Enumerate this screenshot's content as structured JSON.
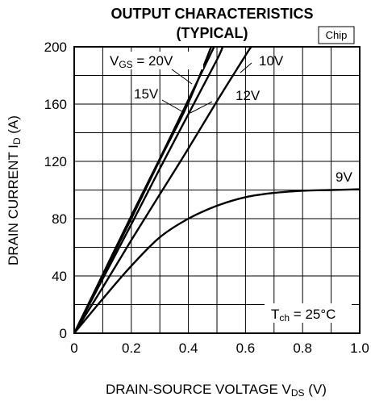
{
  "chart_data": {
    "type": "line",
    "title": "OUTPUT CHARACTERISTICS",
    "subtitle": "(TYPICAL)",
    "badge": "Chip",
    "xlabel": {
      "main": "DRAIN-SOURCE VOLTAGE  V",
      "sub": "DS",
      "unit": " (V)"
    },
    "ylabel": {
      "main": "DRAIN CURRENT  I",
      "sub": "D",
      "unit": " (A)"
    },
    "xlim": [
      0,
      1.0
    ],
    "ylim": [
      0,
      200
    ],
    "x_ticks": [
      "0",
      "0.2",
      "0.4",
      "0.6",
      "0.8",
      "1.0"
    ],
    "y_ticks": [
      "0",
      "40",
      "80",
      "120",
      "160",
      "200"
    ],
    "grid": true,
    "condition": {
      "main": "T",
      "sub": "ch",
      "rest": " = 25°C"
    },
    "series": [
      {
        "name": "V_GS = 20V",
        "x": [
          0,
          0.1,
          0.2,
          0.3,
          0.4,
          0.49
        ],
        "y": [
          0,
          41,
          82,
          122,
          163,
          200
        ]
      },
      {
        "name": "15V",
        "x": [
          0,
          0.1,
          0.2,
          0.3,
          0.4,
          0.48
        ],
        "y": [
          0,
          40,
          80,
          121,
          161,
          200
        ]
      },
      {
        "name": "12V",
        "x": [
          0,
          0.1,
          0.2,
          0.3,
          0.4,
          0.5,
          0.52
        ],
        "y": [
          0,
          38,
          76,
          115,
          153,
          191,
          200
        ]
      },
      {
        "name": "10V",
        "x": [
          0,
          0.1,
          0.2,
          0.3,
          0.4,
          0.5,
          0.6,
          0.62
        ],
        "y": [
          0,
          32,
          65,
          97,
          129,
          162,
          194,
          200
        ]
      },
      {
        "name": "9V",
        "x": [
          0,
          0.1,
          0.2,
          0.3,
          0.4,
          0.5,
          0.6,
          0.7,
          0.8,
          0.9,
          1.0
        ],
        "y": [
          0,
          24,
          47,
          67,
          80,
          89,
          95,
          98,
          99.5,
          100,
          100.5
        ]
      }
    ],
    "labels": {
      "vgs_prefix": "V",
      "vgs_sub": "GS",
      "vgs_rest": " = 20V",
      "l15": "15V",
      "l12": "12V",
      "l10": "10V",
      "l9": "9V"
    }
  }
}
